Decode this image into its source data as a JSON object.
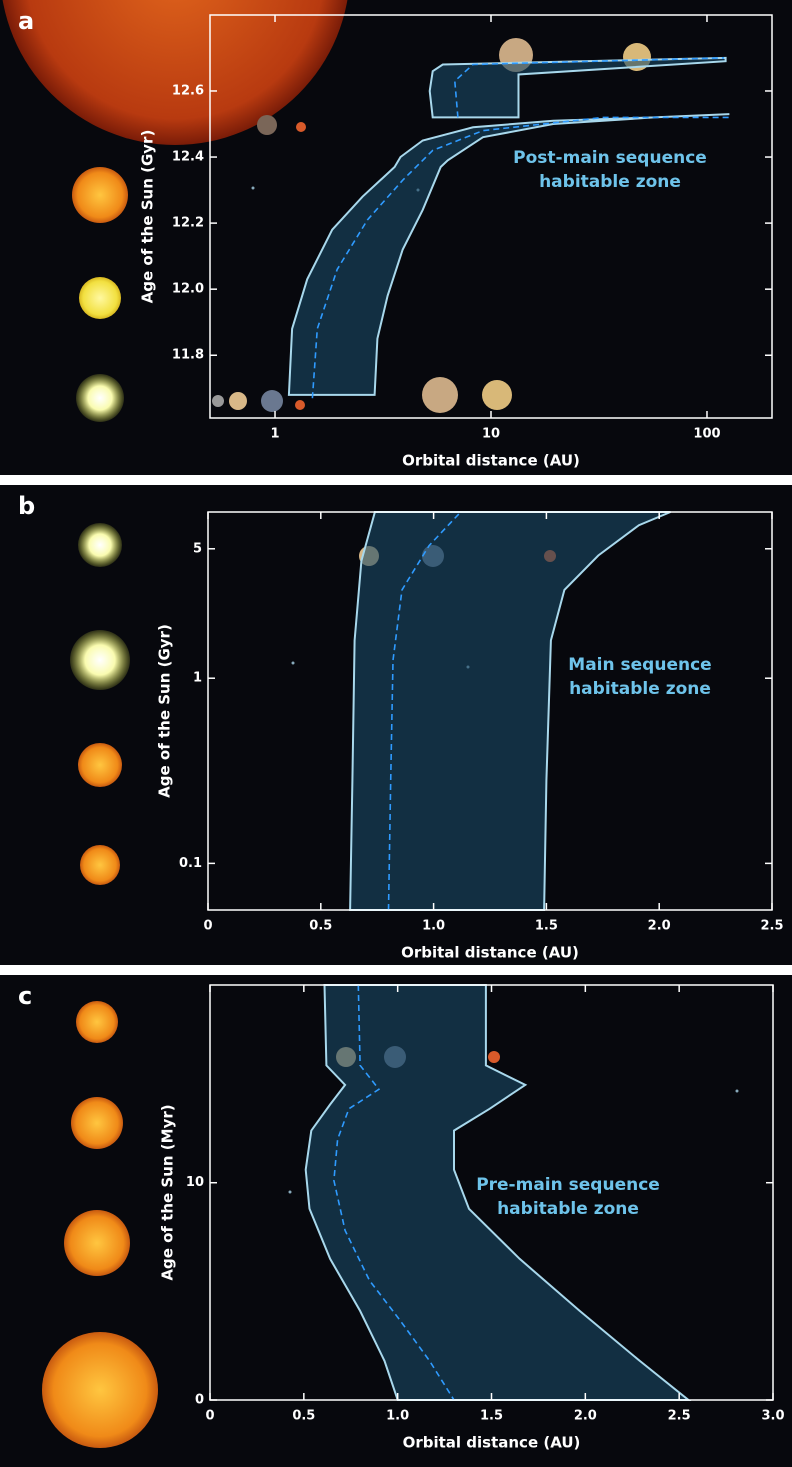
{
  "chart_data": [
    {
      "type": "area",
      "label": "a",
      "xlabel": "Orbital distance (AU)",
      "ylabel": "Age of the Sun (Gyr)",
      "annotation": [
        "Post-main sequence",
        "habitable zone"
      ],
      "log_x": true,
      "xlim": [
        0.5,
        200
      ],
      "ylim": [
        11.61,
        12.83
      ],
      "xticks": [
        1,
        10,
        100
      ],
      "yticks": [
        11.8,
        {
          "value": 12,
          "label": "12.0"
        },
        12.2,
        12.4,
        12.6
      ],
      "series": [
        {
          "color": "#a8d8ec",
          "fill": "#1b4a66",
          "x": [
            1.16,
            1.2,
            1.41,
            1.84,
            2.54,
            3.58,
            3.81,
            4.83,
            8.25,
            19.4,
            56.7,
            127,
            56.7,
            19.4,
            9.18,
            6.31,
            5.85,
            4.83,
            3.9,
            3.32,
            2.98,
            2.89
          ],
          "y": [
            11.68,
            11.88,
            12.03,
            12.18,
            12.28,
            12.37,
            12.4,
            12.45,
            12.49,
            12.51,
            12.52,
            12.53,
            12.52,
            12.5,
            12.46,
            12.39,
            12.37,
            12.24,
            12.12,
            11.98,
            11.85,
            11.68
          ]
        },
        {
          "color": "#a8d8ec",
          "fill": "#1b4a66",
          "x": [
            5.37,
            5.98,
            122,
            122,
            13.4,
            13.4,
            5.37,
            5.2
          ],
          "y": [
            12.66,
            12.68,
            12.7,
            12.69,
            12.65,
            12.52,
            12.52,
            12.6
          ]
        },
        {
          "color": "#2f9bff",
          "dash": true,
          "x": [
            1.49,
            1.57,
            1.94,
            2.68,
            3.9,
            5.37,
            9.18,
            33.2,
            127
          ],
          "y": [
            11.67,
            11.88,
            12.06,
            12.21,
            12.33,
            12.42,
            12.48,
            12.52,
            12.52
          ]
        },
        {
          "color": "#2f9bff",
          "dash": true,
          "x": [
            7.03,
            6.8,
            8.25,
            120
          ],
          "y": [
            12.52,
            12.63,
            12.68,
            12.7
          ]
        }
      ]
    },
    {
      "type": "area",
      "label": "b",
      "xlabel": "Orbital distance (AU)",
      "ylabel": "Age of the Sun (Gyr)",
      "annotation": [
        "Main sequence",
        "habitable zone"
      ],
      "log_y": true,
      "xlim": [
        0,
        2.5
      ],
      "ylim": [
        0.056,
        7.9
      ],
      "xticks": [
        0,
        0.5,
        {
          "value": 1,
          "label": "1.0"
        },
        1.5,
        {
          "value": 2,
          "label": "2.0"
        },
        2.5
      ],
      "yticks": [
        0.1,
        1,
        5
      ],
      "series": [
        {
          "color": "#a8d8ec",
          "fill": "#1b4a66",
          "x": [
            0.63,
            0.64,
            0.65,
            0.68,
            0.74,
            2.05,
            1.91,
            1.73,
            1.58,
            1.52,
            1.5,
            1.49
          ],
          "y": [
            0.056,
            0.28,
            1.6,
            4.3,
            7.9,
            7.9,
            6.7,
            4.6,
            3.0,
            1.6,
            0.28,
            0.056
          ]
        },
        {
          "color": "#2f9bff",
          "dash": true,
          "x": [
            0.8,
            0.81,
            0.82,
            0.86,
            0.98,
            1.12
          ],
          "y": [
            0.056,
            0.28,
            1.25,
            3.0,
            5.2,
            7.9
          ]
        }
      ]
    },
    {
      "type": "area",
      "label": "c",
      "xlabel": "Orbital distance (AU)",
      "ylabel": "Age of the Sun (Myr)",
      "annotation": [
        "Pre-main sequence",
        "habitable zone"
      ],
      "xlim": [
        0,
        3
      ],
      "ylim": [
        0,
        19.1
      ],
      "xticks": [
        0,
        0.5,
        {
          "value": 1,
          "label": "1.0"
        },
        1.5,
        {
          "value": 2,
          "label": "2.0"
        },
        2.5,
        {
          "value": 3,
          "label": "3.0"
        }
      ],
      "yticks": [
        0,
        10
      ],
      "series": [
        {
          "color": "#a8d8ec",
          "fill": "#1b4a66",
          "x": [
            0.61,
            0.62,
            0.72,
            0.64,
            0.54,
            0.51,
            0.53,
            0.64,
            0.8,
            0.93,
            1.0,
            2.55,
            2.29,
            1.97,
            1.65,
            1.38,
            1.3,
            1.3,
            1.49,
            1.68,
            1.47,
            1.47
          ],
          "y": [
            19.1,
            15.4,
            14.5,
            13.6,
            12.4,
            10.6,
            8.8,
            6.5,
            4.1,
            1.8,
            0,
            0,
            1.8,
            4.1,
            6.5,
            8.8,
            10.6,
            12.4,
            13.4,
            14.5,
            15.4,
            19.1
          ]
        },
        {
          "color": "#2f9bff",
          "dash": true,
          "x": [
            0.79,
            0.8,
            0.9,
            0.74,
            0.68,
            0.66,
            0.72,
            0.85,
            1.01,
            1.17,
            1.3
          ],
          "y": [
            19.1,
            15.4,
            14.3,
            13.4,
            12.0,
            10.1,
            7.8,
            5.5,
            3.7,
            1.8,
            0
          ]
        }
      ]
    }
  ]
}
